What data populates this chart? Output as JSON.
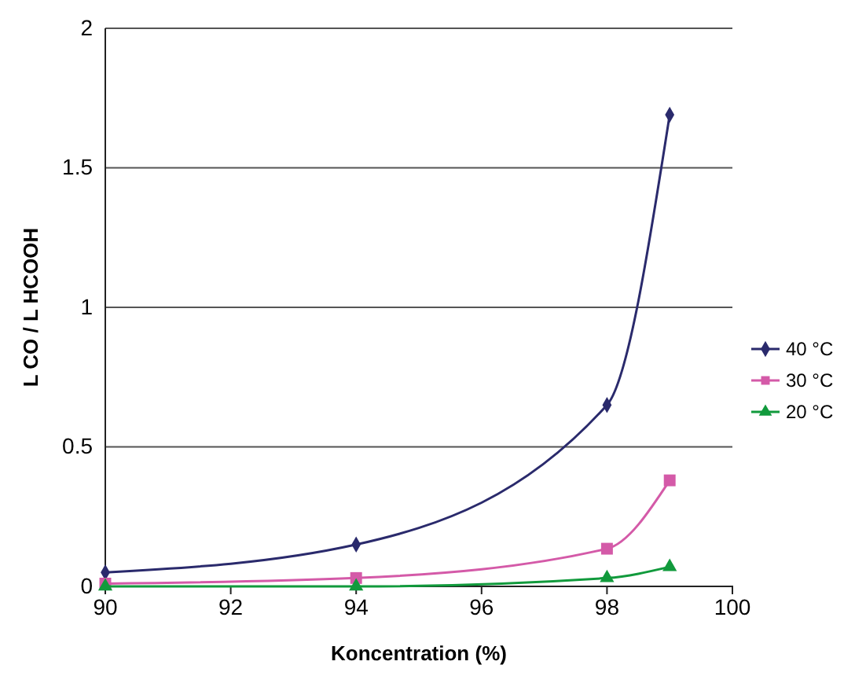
{
  "chart_data": {
    "type": "line",
    "xlabel": "Koncentration (%)",
    "ylabel": "L CO / L HCOOH",
    "x": [
      90,
      94,
      98,
      99
    ],
    "series": [
      {
        "name": "40 °C",
        "color": "#2a2a6c",
        "marker": "diamond",
        "values": [
          0.05,
          0.15,
          0.65,
          1.69
        ]
      },
      {
        "name": "30 °C",
        "color": "#d45aa8",
        "marker": "square",
        "values": [
          0.01,
          0.03,
          0.135,
          0.38
        ]
      },
      {
        "name": "20 °C",
        "color": "#119a3c",
        "marker": "triangle",
        "values": [
          0,
          0,
          0.03,
          0.07
        ]
      }
    ],
    "xlim": [
      90,
      100
    ],
    "xticks": [
      90,
      92,
      94,
      96,
      98,
      100
    ],
    "ylim": [
      0,
      2
    ],
    "yticks": [
      0,
      {
        "value": 0.5,
        "label": "0.5"
      },
      1,
      {
        "value": 1.5,
        "label": "1.5"
      },
      2
    ],
    "grid": "y",
    "legend": "right",
    "line_style": "solid"
  }
}
